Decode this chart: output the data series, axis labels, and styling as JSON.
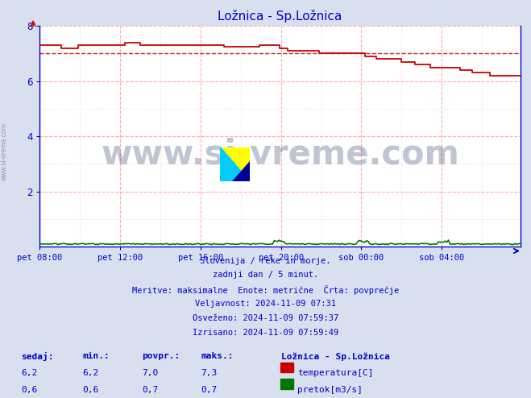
{
  "title": "Ložnica - Sp.Ložnica",
  "title_color": "#0000cc",
  "bg_color": "#d8e0f0",
  "plot_bg_color": "#ffffff",
  "fig_size": [
    6.59,
    4.94
  ],
  "dpi": 100,
  "xlim": [
    0,
    287
  ],
  "ylim": [
    0,
    8
  ],
  "yticks": [
    2,
    4,
    6,
    8
  ],
  "xtick_labels": [
    "pet 08:00",
    "pet 12:00",
    "pet 16:00",
    "pet 20:00",
    "sob 00:00",
    "sob 04:00"
  ],
  "xtick_positions": [
    0,
    48,
    96,
    144,
    192,
    240
  ],
  "temp_avg_line": 7.0,
  "temp_color": "#cc0000",
  "flow_color": "#007700",
  "watermark_text": "www.si-vreme.com",
  "watermark_color": "#1a3060",
  "watermark_alpha": 0.28,
  "side_text": "www.si-vreme.com",
  "info_lines": [
    "Slovenija / reke in morje.",
    "zadnji dan / 5 minut.",
    "Meritve: maksimalne  Enote: metrične  Črta: povprečje",
    "Veljavnost: 2024-11-09 07:31",
    "Osveženo: 2024-11-09 07:59:37",
    "Izrisano: 2024-11-09 07:59:49"
  ],
  "legend_title": "Ložnica - Sp.Ložnica",
  "legend_items": [
    {
      "label": "temperatura[C]",
      "color": "#cc0000"
    },
    {
      "label": "pretok[m3/s]",
      "color": "#007700"
    }
  ],
  "stats_headers": [
    "sedaj:",
    "min.:",
    "povpr.:",
    "maks.:"
  ],
  "stats_temp": [
    6.2,
    6.2,
    7.0,
    7.3
  ],
  "stats_flow": [
    0.6,
    0.6,
    0.7,
    0.7
  ],
  "grid_color_major": "#ffaaaa",
  "grid_color_minor": "#ffdddd",
  "axis_color": "#0000cc"
}
